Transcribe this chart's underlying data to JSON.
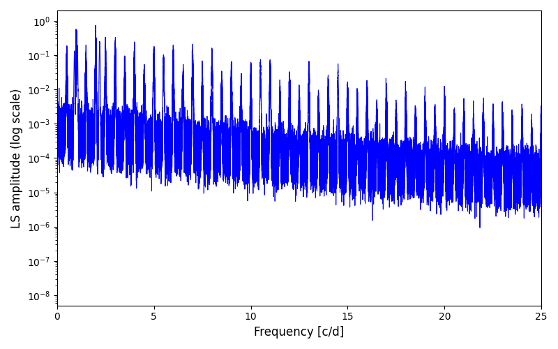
{
  "title": "",
  "xlabel": "Frequency [c/d]",
  "ylabel": "LS amplitude (log scale)",
  "line_color": "#0000ff",
  "line_width": 0.8,
  "xlim": [
    0,
    25
  ],
  "ylim_log_min": -8.3,
  "ylim_log_max": 0.3,
  "freq_max": 25,
  "n_points": 50000,
  "background_color": "#ffffff",
  "figsize": [
    8.0,
    5.0
  ],
  "dpi": 100,
  "seed": 42
}
